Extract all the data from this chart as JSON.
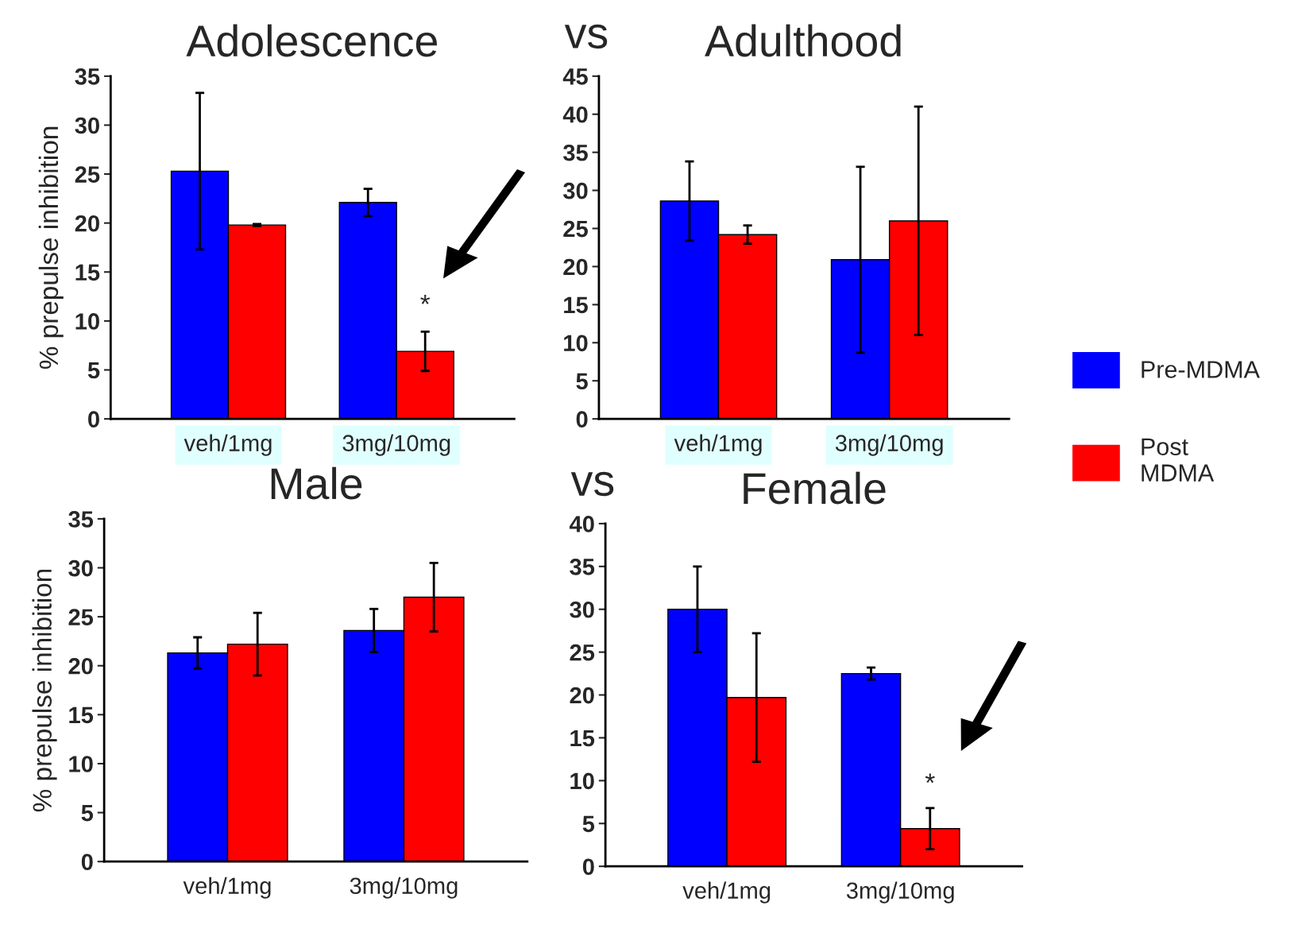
{
  "chart_data": [
    {
      "type": "bar",
      "title": "Adolescence",
      "ylabel": "% prepulse inhibition",
      "categories": [
        "veh/1mg",
        "3mg/10mg"
      ],
      "ylim": [
        0,
        35
      ],
      "yticks": [
        0,
        5,
        10,
        15,
        20,
        25,
        30,
        35
      ],
      "grid": false,
      "legend": false,
      "series": [
        {
          "color": "#0000ff",
          "values": [
            25.3,
            22.1
          ],
          "errors": [
            8,
            1.4
          ]
        },
        {
          "color": "#ff0000",
          "values": [
            19.8,
            6.9
          ],
          "errors": [
            0.1,
            2
          ]
        }
      ],
      "annotations": [
        {
          "text": "*",
          "x": "3mg/10mg",
          "y": 11.5
        }
      ]
    },
    {
      "type": "bar",
      "title": "Adulthood",
      "subtitle": "vs",
      "categories": [
        "veh/1mg",
        "3mg/10mg"
      ],
      "ylim": [
        0,
        45
      ],
      "yticks": [
        0,
        5,
        10,
        15,
        20,
        25,
        30,
        35,
        40,
        45
      ],
      "grid": false,
      "legend": "right",
      "series": [
        {
          "name": "Pre-MDMA",
          "color": "#0000ff",
          "values": [
            28.6,
            20.9
          ],
          "errors": [
            5.2,
            12.2
          ]
        },
        {
          "name": "Post\nMDMA",
          "color": "#ff0000",
          "values": [
            24.2,
            26
          ],
          "errors": [
            1.2,
            15
          ]
        }
      ]
    },
    {
      "type": "bar",
      "title": "Male",
      "ylabel": "% prepulse inhibition",
      "categories": [
        "veh/1mg",
        "3mg/10mg"
      ],
      "ylim": [
        0,
        35
      ],
      "yticks": [
        0,
        5,
        10,
        15,
        20,
        25,
        30,
        35
      ],
      "grid": false,
      "legend": false,
      "series": [
        {
          "color": "#0000ff",
          "values": [
            21.3,
            23.6
          ],
          "errors": [
            1.6,
            2.2
          ]
        },
        {
          "color": "#ff0000",
          "values": [
            22.2,
            27
          ],
          "errors": [
            3.2,
            3.5
          ]
        }
      ]
    },
    {
      "type": "bar",
      "title": "Female",
      "subtitle": "vs",
      "categories": [
        "veh/1mg",
        "3mg/10mg"
      ],
      "ylim": [
        0,
        40
      ],
      "yticks": [
        0,
        5,
        10,
        15,
        20,
        25,
        30,
        35,
        40
      ],
      "grid": false,
      "legend": false,
      "series": [
        {
          "color": "#0000ff",
          "values": [
            30,
            22.5
          ],
          "errors": [
            5,
            0.7
          ]
        },
        {
          "color": "#ff0000",
          "values": [
            19.7,
            4.4
          ],
          "errors": [
            7.5,
            2.4
          ]
        }
      ],
      "annotations": [
        {
          "text": "*",
          "x": "3mg/10mg",
          "y": 9.5
        }
      ]
    }
  ]
}
